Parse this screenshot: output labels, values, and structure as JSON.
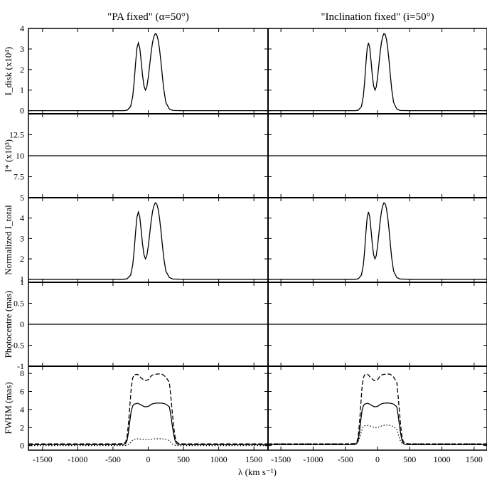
{
  "chart_data": {
    "type": "line",
    "columns": [
      {
        "title": "\"PA fixed\" (α=50°)"
      },
      {
        "title": "\"Inclination fixed\" (i=50°)"
      }
    ],
    "xlabel": "λ (km s⁻¹)",
    "xlim": [
      -1700,
      1700
    ],
    "xticks": [
      -1500,
      -1000,
      -500,
      0,
      500,
      1000,
      1500
    ],
    "rows": [
      {
        "ylabel": "I_disk (x10⁴)",
        "ylim": [
          -0.15,
          4.0
        ],
        "yticks": [
          0,
          1,
          2,
          3,
          4
        ],
        "ytick_labels": [
          "0",
          "1",
          "2",
          "3",
          "4"
        ],
        "series": [
          {
            "style": "solid",
            "x": [
              -1700,
              -500,
              -350,
              -300,
              -250,
              -220,
              -200,
              -180,
              -160,
              -140,
              -120,
              -100,
              -80,
              -60,
              -40,
              -20,
              0,
              20,
              40,
              60,
              80,
              100,
              120,
              140,
              160,
              180,
              200,
              220,
              250,
              300,
              350,
              500,
              1700
            ],
            "y": [
              0,
              0,
              0,
              0.02,
              0.2,
              0.7,
              1.4,
              2.3,
              3.05,
              3.3,
              3.05,
              2.4,
              1.7,
              1.2,
              1.0,
              1.15,
              1.6,
              2.2,
              2.8,
              3.3,
              3.6,
              3.75,
              3.7,
              3.45,
              3.0,
              2.4,
              1.7,
              1.05,
              0.4,
              0.08,
              0.01,
              0,
              0
            ],
            "y_col2": [
              0,
              0,
              0,
              0.02,
              0.2,
              0.7,
              1.4,
              2.3,
              3.05,
              3.3,
              3.05,
              2.4,
              1.7,
              1.2,
              1.0,
              1.15,
              1.6,
              2.2,
              2.8,
              3.3,
              3.6,
              3.75,
              3.7,
              3.45,
              3.0,
              2.4,
              1.7,
              1.05,
              0.4,
              0.08,
              0.01,
              0,
              0
            ]
          }
        ]
      },
      {
        "ylabel": "I* (x10³)",
        "ylim": [
          5,
          15
        ],
        "yticks": [
          5,
          7.5,
          10,
          12.5
        ],
        "ytick_labels": [
          "5",
          "7.5",
          "10",
          "12.5"
        ],
        "series": [
          {
            "style": "solid",
            "x": [
              -1700,
              1700
            ],
            "y": [
              10,
              10
            ],
            "y_col2": [
              10,
              10
            ]
          }
        ]
      },
      {
        "ylabel": "Normalized I_total",
        "ylim": [
          0.85,
          5.0
        ],
        "yticks": [
          1,
          2,
          3,
          4
        ],
        "ytick_labels": [
          "1",
          "2",
          "3",
          "4"
        ],
        "series": [
          {
            "style": "solid",
            "x": [
              -1700,
              -500,
              -350,
              -300,
              -250,
              -220,
              -200,
              -180,
              -160,
              -140,
              -120,
              -100,
              -80,
              -60,
              -40,
              -20,
              0,
              20,
              40,
              60,
              80,
              100,
              120,
              140,
              160,
              180,
              200,
              220,
              250,
              300,
              350,
              500,
              1700
            ],
            "y": [
              1,
              1,
              1,
              1.02,
              1.2,
              1.7,
              2.4,
              3.3,
              4.05,
              4.3,
              4.05,
              3.4,
              2.7,
              2.2,
              2.0,
              2.15,
              2.6,
              3.2,
              3.8,
              4.3,
              4.6,
              4.75,
              4.7,
              4.45,
              4.0,
              3.4,
              2.7,
              2.05,
              1.4,
              1.08,
              1.01,
              1,
              1
            ],
            "y_col2": [
              1,
              1,
              1,
              1.02,
              1.2,
              1.7,
              2.4,
              3.3,
              4.05,
              4.3,
              4.05,
              3.4,
              2.7,
              2.2,
              2.0,
              2.15,
              2.6,
              3.2,
              3.8,
              4.3,
              4.6,
              4.75,
              4.7,
              4.45,
              4.0,
              3.4,
              2.7,
              2.05,
              1.4,
              1.08,
              1.01,
              1,
              1
            ]
          }
        ]
      },
      {
        "ylabel": "Photocentre (mas)",
        "ylim": [
          -1,
          1
        ],
        "yticks": [
          -1,
          -0.5,
          0,
          0.5,
          1
        ],
        "ytick_labels": [
          "-1",
          "-0.5",
          "0",
          "0.5",
          "1"
        ],
        "series": [
          {
            "style": "solid",
            "x": [
              -1700,
              1700
            ],
            "y": [
              0,
              0
            ],
            "y_col2": [
              0,
              0
            ]
          }
        ]
      },
      {
        "ylabel": "FWHM (mas)",
        "ylim": [
          -0.5,
          8.8
        ],
        "yticks": [
          0,
          2,
          4,
          6,
          8
        ],
        "ytick_labels": [
          "0",
          "2",
          "4",
          "6",
          "8"
        ],
        "series": [
          {
            "style": "dashed",
            "x": [
              -1700,
              -500,
              -350,
              -320,
              -300,
              -280,
              -260,
              -240,
              -220,
              -200,
              -150,
              -100,
              -50,
              0,
              50,
              100,
              150,
              200,
              250,
              300,
              320,
              340,
              360,
              380,
              400,
              430,
              500,
              1700
            ],
            "y": [
              0.2,
              0.2,
              0.22,
              0.4,
              1.0,
              2.5,
              4.5,
              6.5,
              7.5,
              7.85,
              7.9,
              7.5,
              7.2,
              7.3,
              7.8,
              7.9,
              7.95,
              7.9,
              7.6,
              7.0,
              5.5,
              3.8,
              2.2,
              1.0,
              0.45,
              0.25,
              0.2,
              0.2
            ],
            "y_col2": [
              0.2,
              0.2,
              0.22,
              0.4,
              1.0,
              2.5,
              4.5,
              6.5,
              7.5,
              7.85,
              7.9,
              7.5,
              7.2,
              7.3,
              7.8,
              7.9,
              7.95,
              7.9,
              7.6,
              7.0,
              5.5,
              3.8,
              2.2,
              1.0,
              0.45,
              0.25,
              0.2,
              0.2
            ]
          },
          {
            "style": "solid",
            "x": [
              -1700,
              -500,
              -350,
              -320,
              -300,
              -280,
              -260,
              -240,
              -220,
              -200,
              -150,
              -100,
              -50,
              0,
              50,
              100,
              150,
              200,
              250,
              300,
              320,
              340,
              360,
              380,
              400,
              430,
              500,
              1700
            ],
            "y": [
              0.1,
              0.1,
              0.12,
              0.25,
              0.6,
              1.5,
              2.8,
              3.9,
              4.4,
              4.6,
              4.7,
              4.5,
              4.3,
              4.35,
              4.6,
              4.7,
              4.72,
              4.7,
              4.6,
              4.3,
              3.4,
              2.3,
              1.3,
              0.6,
              0.25,
              0.12,
              0.1,
              0.1
            ],
            "y_col2": [
              0.1,
              0.1,
              0.12,
              0.25,
              0.6,
              1.5,
              2.8,
              3.9,
              4.4,
              4.6,
              4.7,
              4.5,
              4.3,
              4.35,
              4.6,
              4.7,
              4.72,
              4.7,
              4.6,
              4.3,
              3.4,
              2.3,
              1.3,
              0.6,
              0.25,
              0.12,
              0.1,
              0.1
            ]
          },
          {
            "style": "dotted",
            "x": [
              -1700,
              -500,
              -350,
              -320,
              -300,
              -280,
              -260,
              -240,
              -220,
              -200,
              -150,
              -100,
              -50,
              0,
              50,
              100,
              150,
              200,
              250,
              300,
              320,
              340,
              360,
              380,
              400,
              430,
              500,
              1700
            ],
            "y": [
              0,
              0,
              0,
              0.02,
              0.05,
              0.12,
              0.25,
              0.45,
              0.6,
              0.7,
              0.75,
              0.72,
              0.65,
              0.65,
              0.72,
              0.75,
              0.77,
              0.75,
              0.7,
              0.55,
              0.35,
              0.2,
              0.1,
              0.04,
              0.01,
              0,
              0,
              0
            ],
            "y_col2": [
              0.2,
              0.2,
              0.22,
              0.3,
              0.45,
              0.8,
              1.3,
              1.8,
              2.1,
              2.2,
              2.25,
              2.15,
              2.0,
              2.0,
              2.15,
              2.25,
              2.28,
              2.25,
              2.1,
              1.8,
              1.3,
              0.8,
              0.45,
              0.25,
              0.2,
              0.2,
              0.2,
              0.2
            ]
          }
        ]
      }
    ]
  }
}
